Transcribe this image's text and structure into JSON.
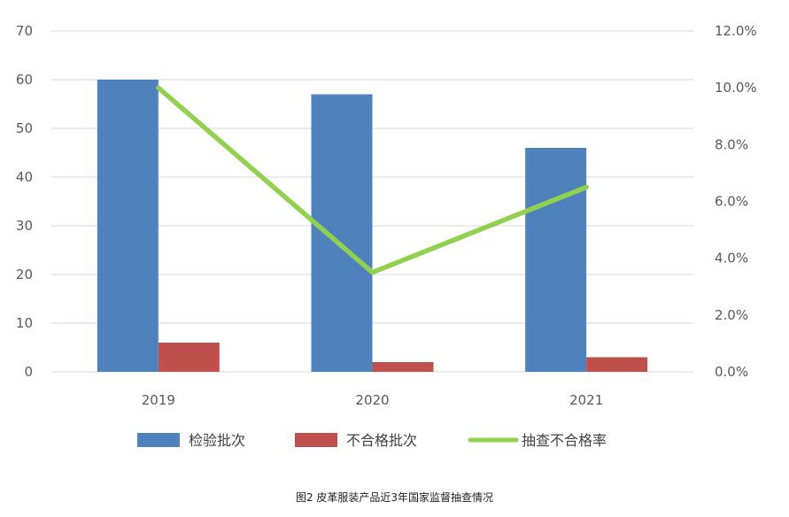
{
  "chart_data": {
    "type": "bar",
    "categories": [
      "2019",
      "2020",
      "2021"
    ],
    "series": [
      {
        "name": "检验批次",
        "type": "bar",
        "axis": "left",
        "color": "#4F81BD",
        "values": [
          60,
          57,
          46
        ]
      },
      {
        "name": "不合格批次",
        "type": "bar",
        "axis": "left",
        "color": "#C0504D",
        "values": [
          6,
          2,
          3
        ]
      },
      {
        "name": "抽查不合格率",
        "type": "line",
        "axis": "right",
        "color": "#92D050",
        "values": [
          10.0,
          3.5,
          6.5
        ]
      }
    ],
    "y_left": {
      "lim": [
        0,
        70
      ],
      "ticks": [
        "0",
        "10",
        "20",
        "30",
        "40",
        "50",
        "60",
        "70"
      ]
    },
    "y_right": {
      "lim": [
        0,
        12
      ],
      "ticks": [
        "0.0%",
        "2.0%",
        "4.0%",
        "6.0%",
        "8.0%",
        "10.0%",
        "12.0%"
      ]
    },
    "legend": {
      "placement": "bottom"
    },
    "grid": true,
    "caption": "图2 皮革服装产品近3年国家监督抽查情况"
  }
}
